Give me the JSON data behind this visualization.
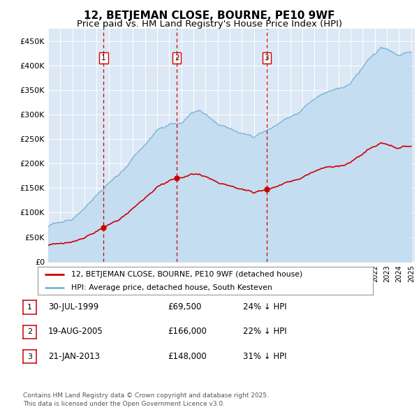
{
  "title": "12, BETJEMAN CLOSE, BOURNE, PE10 9WF",
  "subtitle": "Price paid vs. HM Land Registry's House Price Index (HPI)",
  "ylim": [
    0,
    475000
  ],
  "yticks": [
    0,
    50000,
    100000,
    150000,
    200000,
    250000,
    300000,
    350000,
    400000,
    450000
  ],
  "ytick_labels": [
    "£0",
    "£50K",
    "£100K",
    "£150K",
    "£200K",
    "£250K",
    "£300K",
    "£350K",
    "£400K",
    "£450K"
  ],
  "background_color": "#dce8f5",
  "hpi_color": "#7ab3d8",
  "hpi_fill_color": "#c5ddf0",
  "price_color": "#cc0000",
  "vline_color": "#cc0000",
  "sale1_date": 1999.58,
  "sale1_price": 69500,
  "sale2_date": 2005.63,
  "sale2_price": 166000,
  "sale3_date": 2013.05,
  "sale3_price": 148000,
  "legend_line1": "12, BETJEMAN CLOSE, BOURNE, PE10 9WF (detached house)",
  "legend_line2": "HPI: Average price, detached house, South Kesteven",
  "table_rows": [
    [
      "1",
      "30-JUL-1999",
      "£69,500",
      "24% ↓ HPI"
    ],
    [
      "2",
      "19-AUG-2005",
      "£166,000",
      "22% ↓ HPI"
    ],
    [
      "3",
      "21-JAN-2013",
      "£148,000",
      "31% ↓ HPI"
    ]
  ],
  "footnote": "Contains HM Land Registry data © Crown copyright and database right 2025.\nThis data is licensed under the Open Government Licence v3.0.",
  "title_fontsize": 11,
  "subtitle_fontsize": 9.5
}
